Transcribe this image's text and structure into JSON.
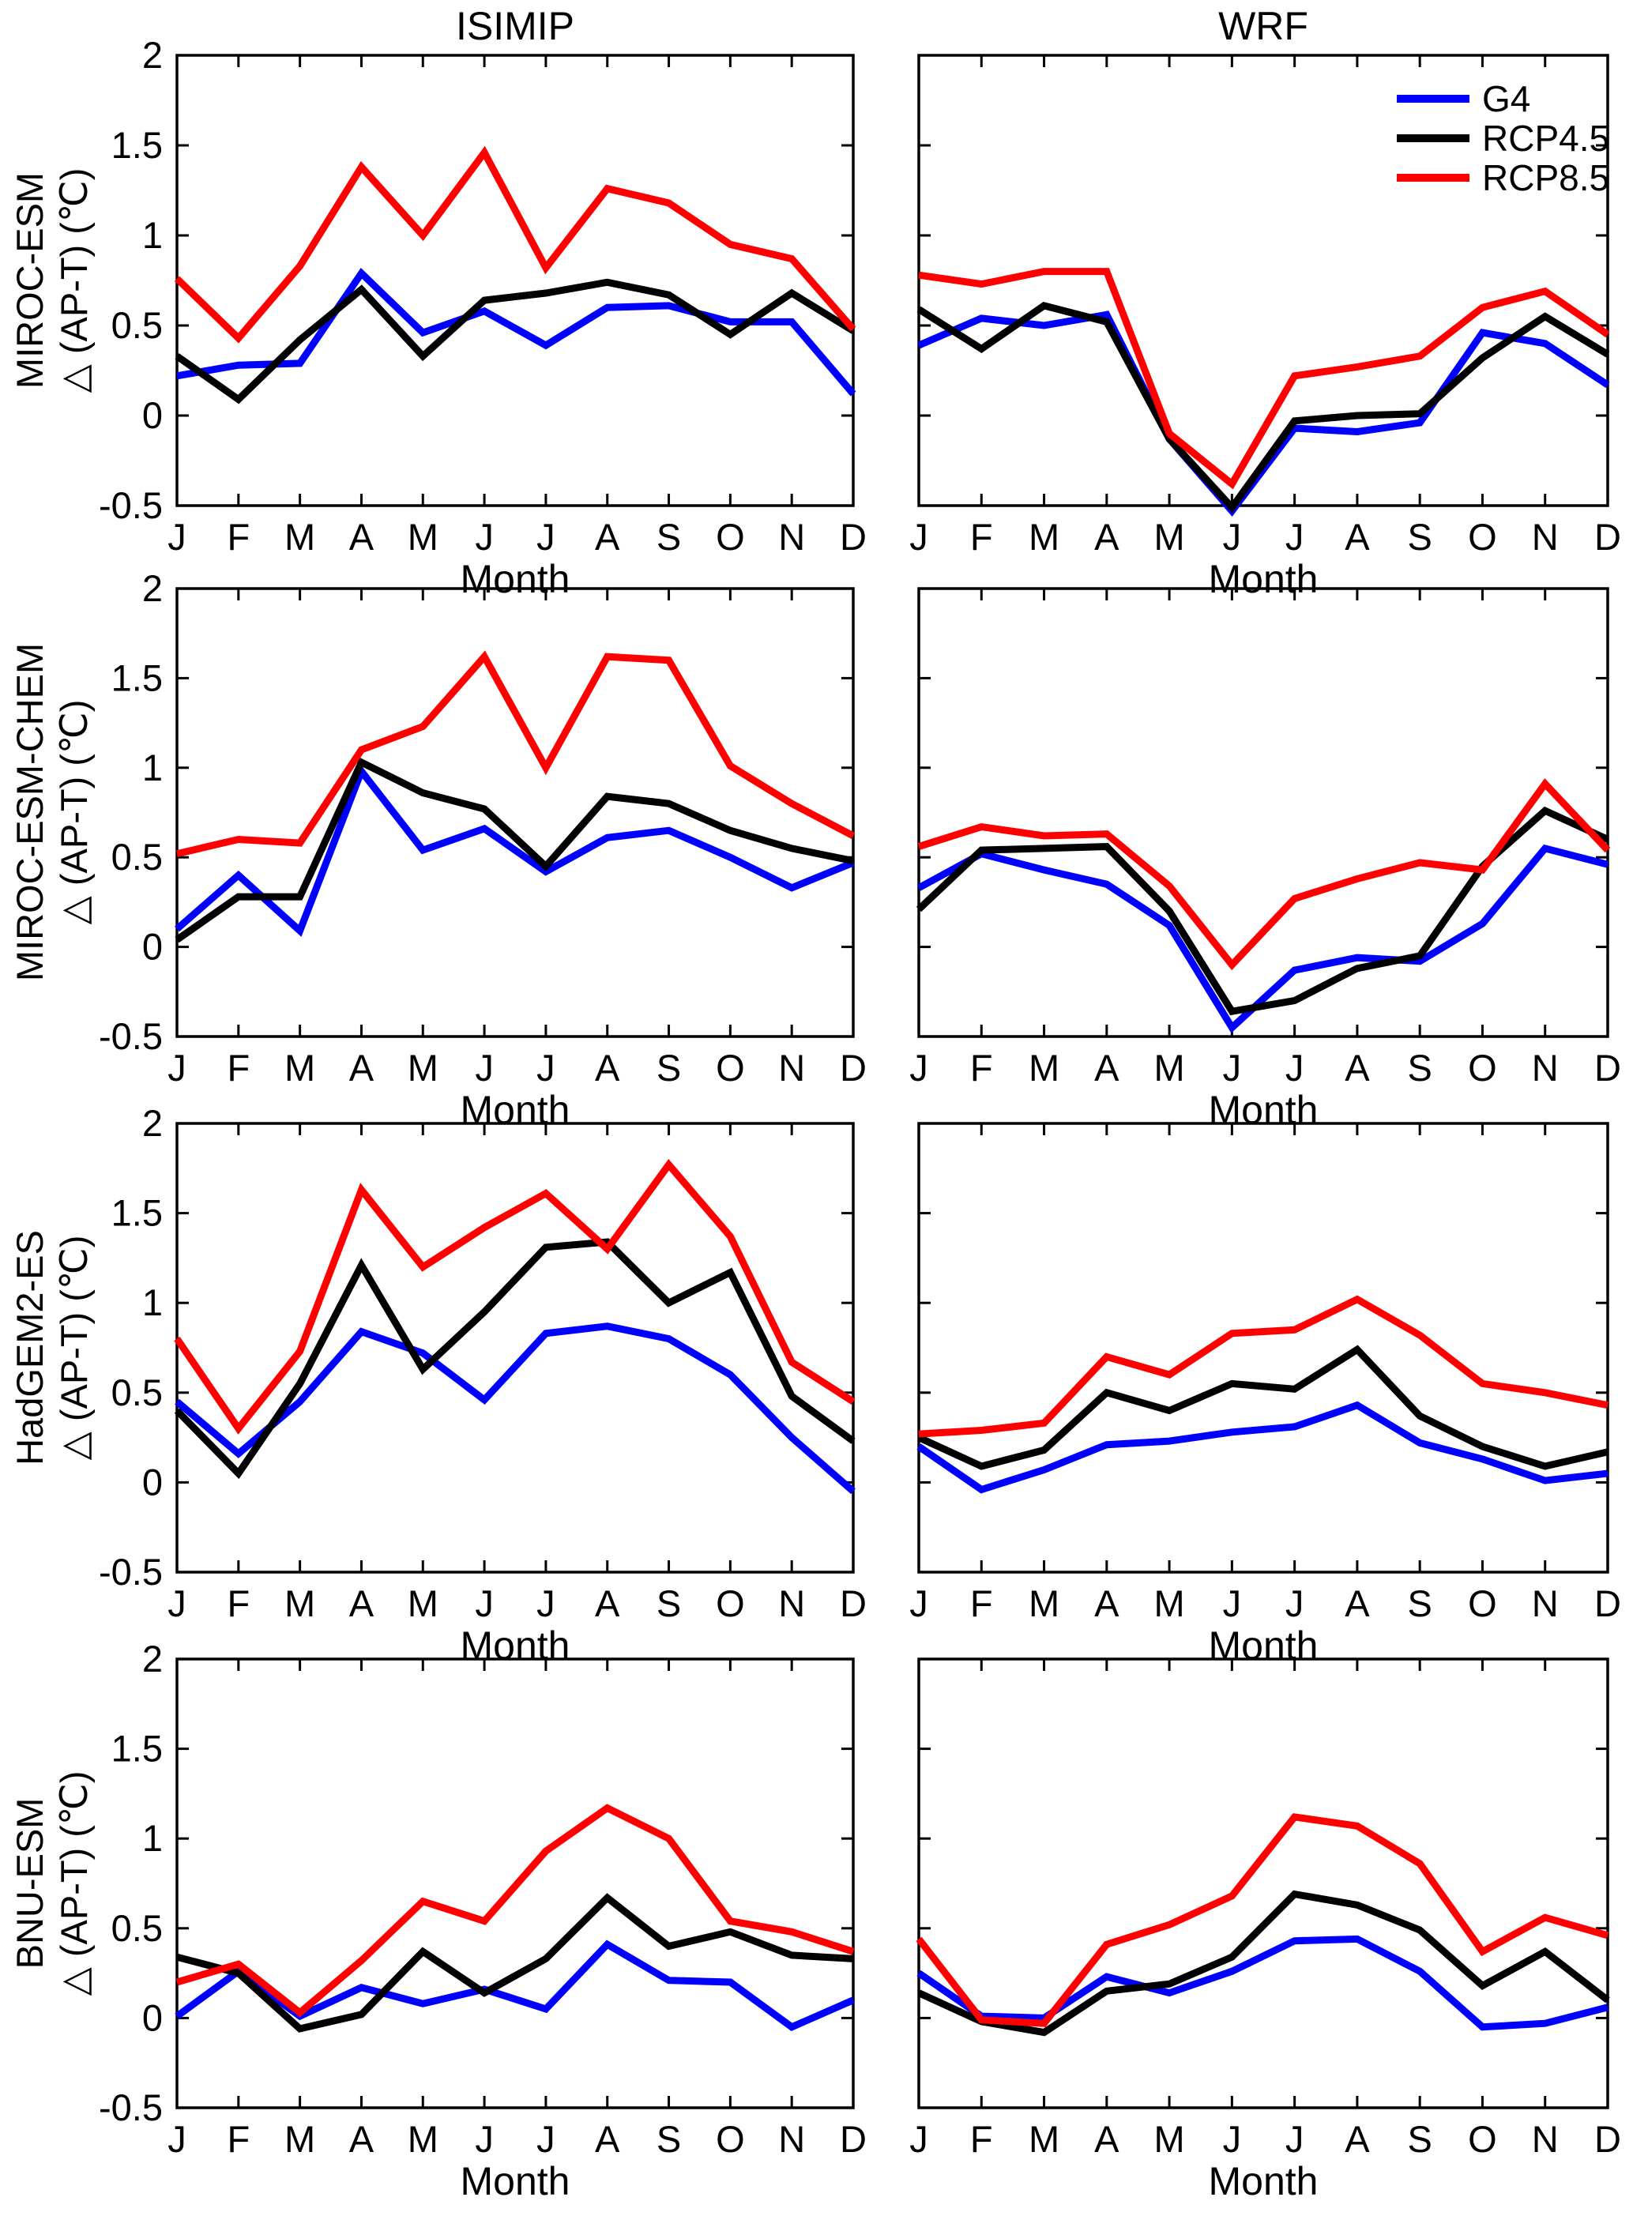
{
  "titles": {
    "left": "ISIMIP",
    "right": "WRF"
  },
  "legend": [
    {
      "label": "G4",
      "color": "#0000ff"
    },
    {
      "label": "RCP4.5",
      "color": "#000000"
    },
    {
      "label": "RCP8.5",
      "color": "#ff0000"
    }
  ],
  "chart_data": {
    "type": "line",
    "categories": [
      "J",
      "F",
      "M",
      "A",
      "M",
      "J",
      "J",
      "A",
      "S",
      "O",
      "N",
      "D"
    ],
    "xlabel": "Month",
    "ylabel": "△ (AP-T) (℃)",
    "ylim": [
      -0.5,
      2
    ],
    "yticks": [
      "2",
      "1.5",
      "1",
      "0.5",
      "0",
      "-0.5"
    ],
    "grid": false,
    "legend_position": "top-right inside first WRF panel",
    "series_names": [
      "G4",
      "RCP4.5",
      "RCP8.5"
    ],
    "column_titles": [
      "ISIMIP",
      "WRF"
    ],
    "row_labels": [
      "MIROC-ESM",
      "MIROC-ESM-CHEM",
      "HadGEM2-ES",
      "BNU-ESM"
    ],
    "charts": [
      {
        "id": "miroc-esm-isimip",
        "row_label": "MIROC-ESM",
        "column": "ISIMIP",
        "series": {
          "G4": [
            0.22,
            0.28,
            0.29,
            0.79,
            0.46,
            0.58,
            0.39,
            0.6,
            0.61,
            0.52,
            0.52,
            0.12
          ],
          "RCP4.5": [
            0.33,
            0.09,
            0.42,
            0.7,
            0.33,
            0.64,
            0.68,
            0.74,
            0.67,
            0.45,
            0.68,
            0.47
          ],
          "RCP8.5": [
            0.76,
            0.43,
            0.83,
            1.38,
            1.0,
            1.46,
            0.82,
            1.26,
            1.18,
            0.95,
            0.87,
            0.48
          ]
        }
      },
      {
        "id": "miroc-esm-wrf",
        "row_label": "MIROC-ESM",
        "column": "WRF",
        "series": {
          "G4": [
            0.39,
            0.54,
            0.5,
            0.56,
            -0.13,
            -0.53,
            -0.07,
            -0.09,
            -0.04,
            0.46,
            0.4,
            0.17
          ],
          "RCP4.5": [
            0.59,
            0.37,
            0.61,
            0.52,
            -0.13,
            -0.51,
            -0.03,
            0.0,
            0.01,
            0.32,
            0.55,
            0.34
          ],
          "RCP8.5": [
            0.78,
            0.73,
            0.8,
            0.8,
            -0.1,
            -0.38,
            0.22,
            0.27,
            0.33,
            0.6,
            0.69,
            0.45
          ]
        }
      },
      {
        "id": "miroc-esm-chem-isimip",
        "row_label": "MIROC-ESM-CHEM",
        "column": "ISIMIP",
        "series": {
          "G4": [
            0.1,
            0.4,
            0.09,
            0.98,
            0.54,
            0.66,
            0.42,
            0.61,
            0.65,
            0.5,
            0.33,
            0.47
          ],
          "RCP4.5": [
            0.04,
            0.28,
            0.28,
            1.03,
            0.86,
            0.77,
            0.45,
            0.84,
            0.8,
            0.65,
            0.55,
            0.48
          ],
          "RCP8.5": [
            0.52,
            0.6,
            0.58,
            1.1,
            1.23,
            1.62,
            1.0,
            1.62,
            1.6,
            1.01,
            0.8,
            0.62
          ]
        }
      },
      {
        "id": "miroc-esm-chem-wrf",
        "row_label": "MIROC-ESM-CHEM",
        "column": "WRF",
        "series": {
          "G4": [
            0.33,
            0.52,
            0.43,
            0.35,
            0.12,
            -0.45,
            -0.13,
            -0.06,
            -0.08,
            0.13,
            0.55,
            0.46
          ],
          "RCP4.5": [
            0.21,
            0.54,
            0.55,
            0.56,
            0.2,
            -0.36,
            -0.3,
            -0.12,
            -0.05,
            0.45,
            0.76,
            0.6
          ],
          "RCP8.5": [
            0.56,
            0.67,
            0.62,
            0.63,
            0.34,
            -0.1,
            0.27,
            0.38,
            0.47,
            0.43,
            0.91,
            0.54
          ]
        }
      },
      {
        "id": "hadgem2-es-isimip",
        "row_label": "HadGEM2-ES",
        "column": "ISIMIP",
        "series": {
          "G4": [
            0.45,
            0.16,
            0.45,
            0.84,
            0.72,
            0.46,
            0.83,
            0.87,
            0.8,
            0.6,
            0.25,
            -0.05
          ],
          "RCP4.5": [
            0.4,
            0.05,
            0.55,
            1.21,
            0.63,
            0.95,
            1.31,
            1.34,
            1.0,
            1.17,
            0.48,
            0.23
          ],
          "RCP8.5": [
            0.8,
            0.3,
            0.73,
            1.63,
            1.2,
            1.42,
            1.61,
            1.3,
            1.77,
            1.37,
            0.67,
            0.45
          ]
        }
      },
      {
        "id": "hadgem2-es-wrf",
        "row_label": "HadGEM2-ES",
        "column": "WRF",
        "series": {
          "G4": [
            0.2,
            -0.04,
            0.07,
            0.21,
            0.23,
            0.28,
            0.31,
            0.43,
            0.22,
            0.13,
            0.01,
            0.05
          ],
          "RCP4.5": [
            0.25,
            0.09,
            0.18,
            0.5,
            0.4,
            0.55,
            0.52,
            0.74,
            0.37,
            0.2,
            0.09,
            0.17
          ],
          "RCP8.5": [
            0.27,
            0.29,
            0.33,
            0.7,
            0.6,
            0.83,
            0.85,
            1.02,
            0.82,
            0.55,
            0.5,
            0.43
          ]
        }
      },
      {
        "id": "bnu-esm-isimip",
        "row_label": "BNU-ESM",
        "column": "ISIMIP",
        "series": {
          "G4": [
            0.01,
            0.26,
            0.01,
            0.17,
            0.08,
            0.16,
            0.05,
            0.41,
            0.21,
            0.2,
            -0.05,
            0.1
          ],
          "RCP4.5": [
            0.34,
            0.25,
            -0.06,
            0.02,
            0.37,
            0.14,
            0.33,
            0.67,
            0.4,
            0.48,
            0.35,
            0.33
          ],
          "RCP8.5": [
            0.2,
            0.3,
            0.03,
            0.32,
            0.65,
            0.54,
            0.93,
            1.17,
            1.0,
            0.54,
            0.48,
            0.37
          ]
        }
      },
      {
        "id": "bnu-esm-wrf",
        "row_label": "BNU-ESM",
        "column": "WRF",
        "series": {
          "G4": [
            0.25,
            0.01,
            0.0,
            0.23,
            0.14,
            0.26,
            0.43,
            0.44,
            0.26,
            -0.05,
            -0.03,
            0.06
          ],
          "RCP4.5": [
            0.14,
            -0.02,
            -0.08,
            0.15,
            0.19,
            0.34,
            0.69,
            0.63,
            0.49,
            0.18,
            0.37,
            0.1
          ],
          "RCP8.5": [
            0.44,
            -0.01,
            -0.03,
            0.41,
            0.52,
            0.68,
            1.12,
            1.07,
            0.86,
            0.37,
            0.56,
            0.46
          ]
        }
      }
    ]
  }
}
